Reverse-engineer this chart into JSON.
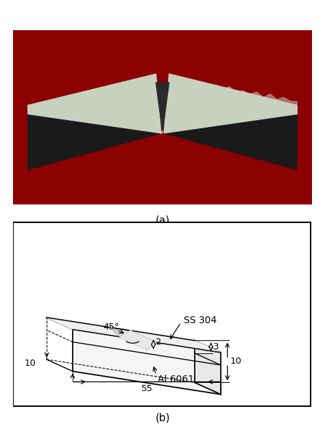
{
  "fig_width": 4.74,
  "fig_height": 6.34,
  "bg_color": "#ffffff",
  "panel_a_label": "(a)",
  "panel_b_label": "(b)",
  "label_fontsize": 11,
  "dim_fontsize": 9.5,
  "photo_bg": "#8B0000",
  "dim_45": "45°",
  "dim_2": "2",
  "dim_3": "3",
  "dim_10_side": "10",
  "dim_55": "55",
  "dim_10_bottom": "10",
  "label_SS304": "SS 304",
  "label_Al6061": "Al 6061",
  "specimen_dark": "#1a1a1a",
  "specimen_mid": "#555555",
  "specimen_light": "#c8d0c0",
  "specimen_sheen": "#a0aaa0"
}
